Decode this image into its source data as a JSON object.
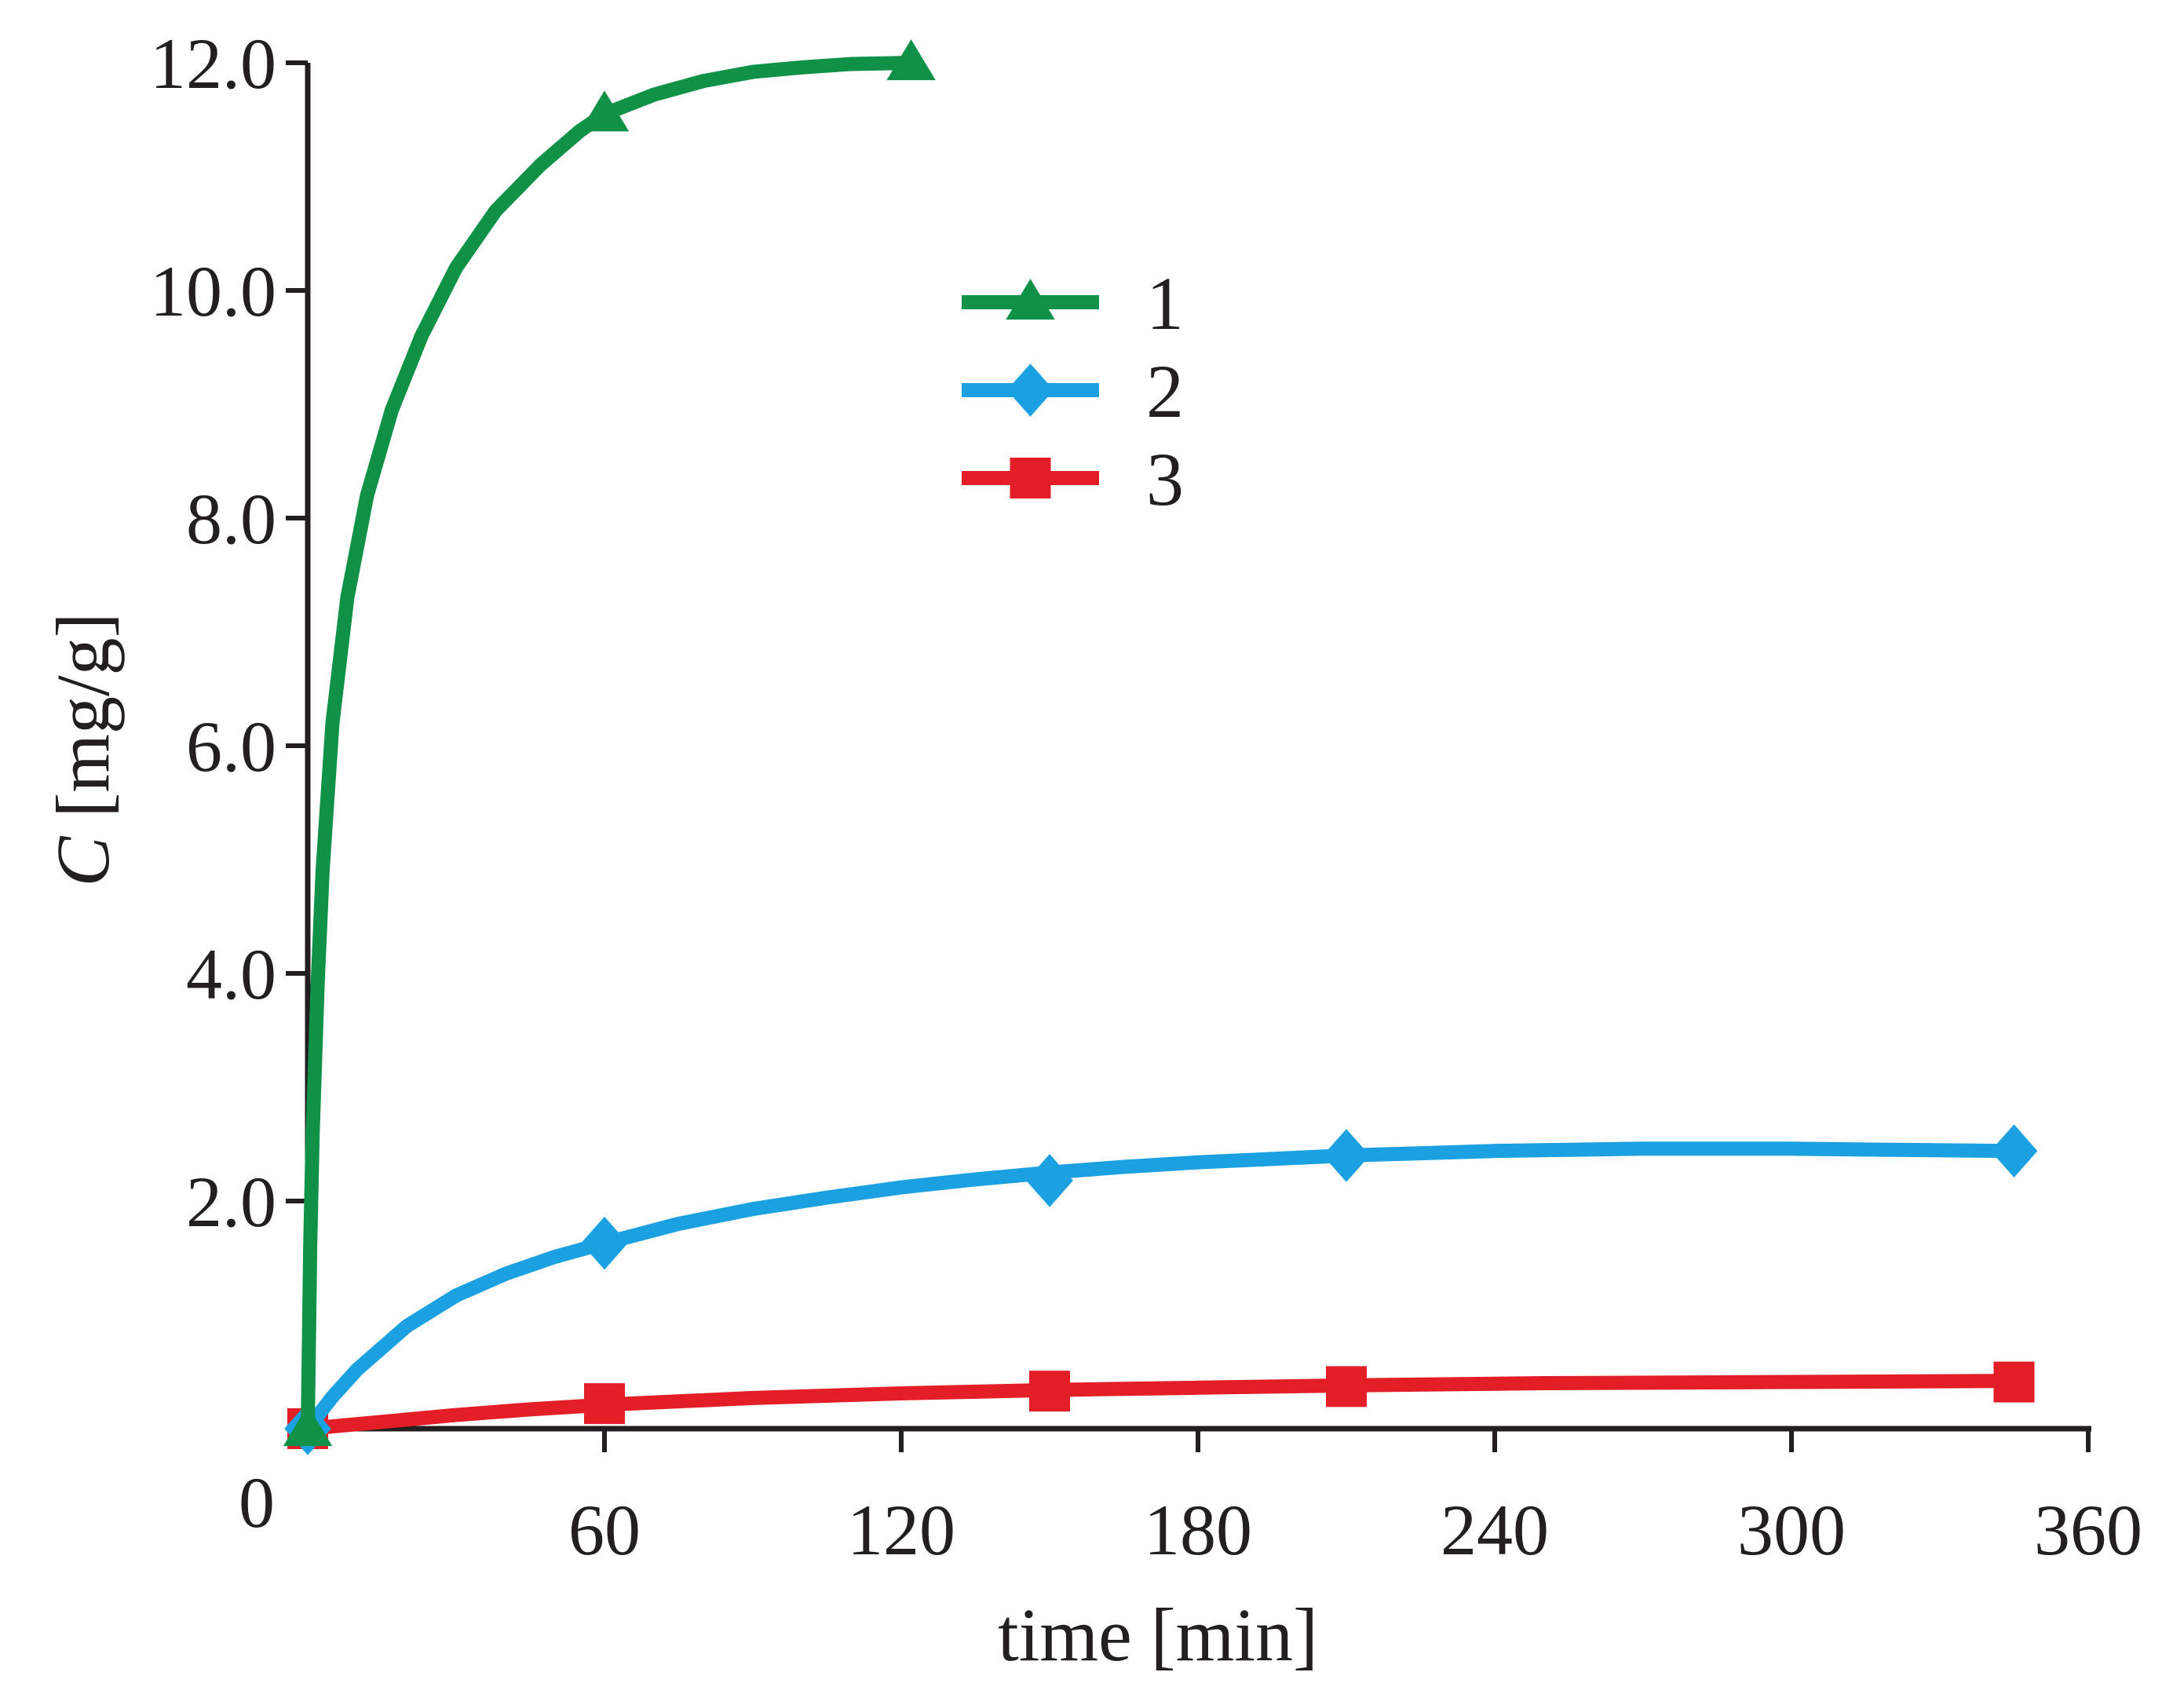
{
  "chart_data": {
    "type": "line",
    "title": "",
    "xlabel": "time [min]",
    "ylabel_symbol": "C",
    "ylabel_unit": " [mg/g]",
    "xlim": [
      0,
      360
    ],
    "ylim": [
      0,
      12
    ],
    "x_ticks": [
      0,
      60,
      120,
      180,
      240,
      300,
      360
    ],
    "x_tick_labels": [
      "0",
      "60",
      "120",
      "180",
      "240",
      "300",
      "360"
    ],
    "y_ticks": [
      2,
      4,
      6,
      8,
      10,
      12
    ],
    "y_tick_labels": [
      "2.0",
      "4.0",
      "6.0",
      "8.0",
      "10.0",
      "12.0"
    ],
    "grid": false,
    "legend_position": "top-center",
    "series": [
      {
        "name": "1",
        "color": "#0f9147",
        "marker": "triangle",
        "x": [
          0,
          60,
          122
        ],
        "y": [
          0,
          11.55,
          12.0
        ],
        "curve": [
          [
            0,
            0
          ],
          [
            0.5,
            1.6
          ],
          [
            1,
            2.6
          ],
          [
            2,
            3.9
          ],
          [
            3,
            4.9
          ],
          [
            5,
            6.2
          ],
          [
            8,
            7.3
          ],
          [
            12,
            8.2
          ],
          [
            17,
            8.95
          ],
          [
            23,
            9.6
          ],
          [
            30,
            10.2
          ],
          [
            38,
            10.7
          ],
          [
            47,
            11.1
          ],
          [
            55,
            11.4
          ],
          [
            60,
            11.55
          ],
          [
            70,
            11.72
          ],
          [
            80,
            11.84
          ],
          [
            90,
            11.92
          ],
          [
            100,
            11.96
          ],
          [
            110,
            11.99
          ],
          [
            122,
            12.0
          ]
        ]
      },
      {
        "name": "2",
        "color": "#1ba1e2",
        "marker": "diamond",
        "x": [
          0,
          60,
          150,
          210,
          345
        ],
        "y": [
          0,
          1.63,
          2.18,
          2.4,
          2.44
        ],
        "curve": [
          [
            0,
            0
          ],
          [
            5,
            0.28
          ],
          [
            10,
            0.52
          ],
          [
            20,
            0.9
          ],
          [
            30,
            1.17
          ],
          [
            40,
            1.36
          ],
          [
            50,
            1.51
          ],
          [
            60,
            1.63
          ],
          [
            75,
            1.8
          ],
          [
            90,
            1.93
          ],
          [
            105,
            2.03
          ],
          [
            120,
            2.12
          ],
          [
            135,
            2.19
          ],
          [
            150,
            2.25
          ],
          [
            165,
            2.3
          ],
          [
            180,
            2.34
          ],
          [
            195,
            2.37
          ],
          [
            210,
            2.4
          ],
          [
            240,
            2.44
          ],
          [
            270,
            2.46
          ],
          [
            300,
            2.46
          ],
          [
            320,
            2.45
          ],
          [
            345,
            2.44
          ]
        ]
      },
      {
        "name": "3",
        "color": "#e31e26",
        "marker": "square",
        "x": [
          0,
          60,
          150,
          210,
          345
        ],
        "y": [
          0,
          0.22,
          0.33,
          0.37,
          0.41
        ],
        "curve": [
          [
            0,
            0
          ],
          [
            15,
            0.06
          ],
          [
            30,
            0.12
          ],
          [
            45,
            0.17
          ],
          [
            60,
            0.21
          ],
          [
            90,
            0.27
          ],
          [
            120,
            0.31
          ],
          [
            150,
            0.34
          ],
          [
            180,
            0.36
          ],
          [
            210,
            0.38
          ],
          [
            250,
            0.4
          ],
          [
            300,
            0.41
          ],
          [
            345,
            0.42
          ]
        ]
      }
    ]
  }
}
